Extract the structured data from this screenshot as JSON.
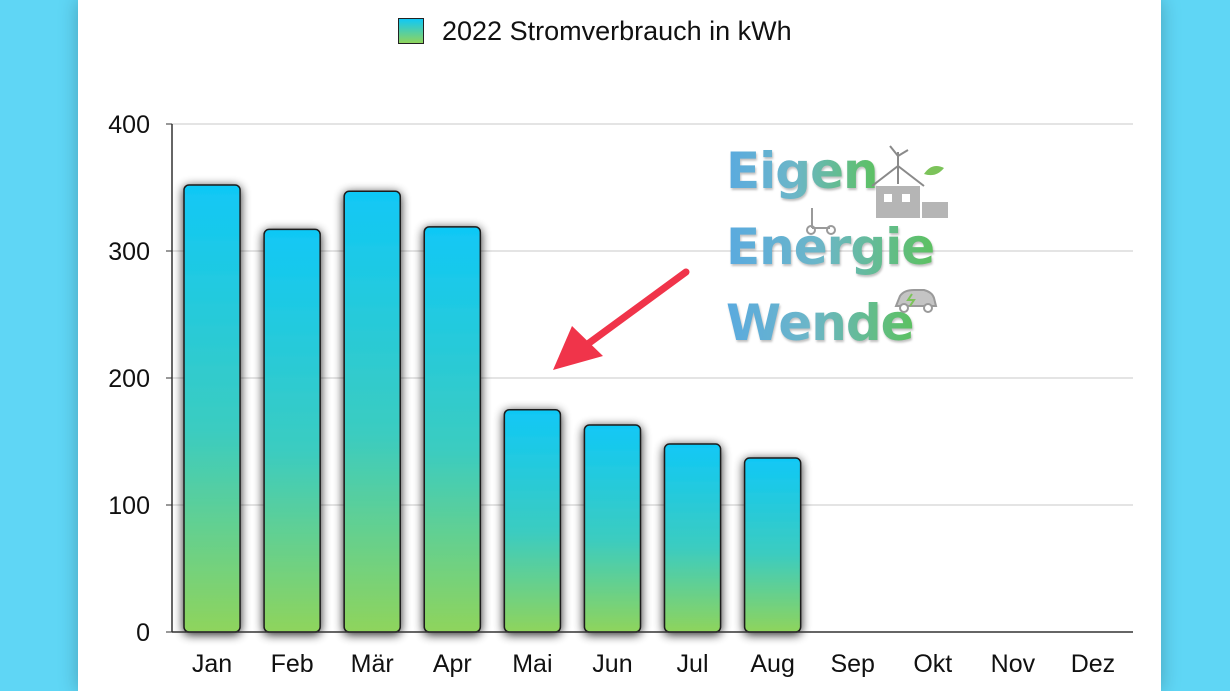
{
  "chart_data": {
    "type": "bar",
    "title": "",
    "legend": {
      "label": "2022 Stromverbrauch in kWh",
      "position": "top-center"
    },
    "categories": [
      "Jan",
      "Feb",
      "Mär",
      "Apr",
      "Mai",
      "Jun",
      "Jul",
      "Aug",
      "Sep",
      "Okt",
      "Nov",
      "Dez"
    ],
    "series": [
      {
        "name": "2022 Stromverbrauch in kWh",
        "values": [
          352,
          317,
          347,
          319,
          175,
          163,
          148,
          137,
          null,
          null,
          null,
          null
        ]
      }
    ],
    "ylim": [
      0,
      400
    ],
    "yticks": [
      "0",
      "100",
      "200",
      "300",
      "400"
    ],
    "grid": true,
    "colors": {
      "bar_top": "#10c8f6",
      "bar_bottom": "#8fd45c",
      "arrow": "#f0344a",
      "grid": "#c8c8c8"
    }
  },
  "logo": {
    "lines": [
      "Eigen",
      "Energie",
      "Wende"
    ],
    "icons": [
      "house-wind-turbine-icon",
      "scooter-icon",
      "electric-car-icon"
    ]
  }
}
